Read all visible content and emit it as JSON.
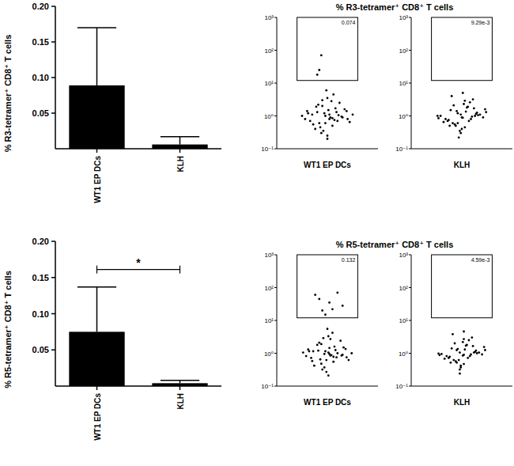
{
  "chart_data": [
    {
      "type": "bar",
      "y_label": "% R3-tetramer⁺ CD8⁺ T cells",
      "categories": [
        "WT1 EP DCs",
        "KLH"
      ],
      "values": [
        0.089,
        0.006
      ],
      "errors": [
        0.081,
        0.011
      ],
      "color": "#000000",
      "ylim": [
        0,
        0.2
      ],
      "yticks": [
        0.05,
        {
          "value": 0.1,
          "label": "0.10"
        },
        0.15,
        {
          "value": 0.2,
          "label": "0.20"
        }
      ]
    },
    {
      "type": "scatter",
      "title": "% R3-tetramer⁺ CD8⁺ T cells",
      "x_label": "WT1 EP DCs",
      "log": "y",
      "tick_labels": "y",
      "color": "#000000",
      "xlim": [
        0,
        100
      ],
      "ylim": [
        0.1,
        1000
      ],
      "yticks": [
        {
          "value": 0.1,
          "label": "10⁻¹"
        },
        {
          "value": 1,
          "label": "10⁰"
        },
        {
          "value": 10,
          "label": "10¹"
        },
        {
          "value": 100,
          "label": "10²"
        },
        {
          "value": 1000,
          "label": "10³"
        }
      ],
      "gate": {
        "x": [
          20,
          80
        ],
        "y": [
          12,
          1000
        ],
        "label": "0.074"
      },
      "x": [
        48,
        52,
        40,
        60,
        35,
        65,
        45,
        55,
        30,
        70,
        50,
        42,
        58,
        38,
        62,
        47,
        53,
        25,
        75,
        44,
        56,
        33,
        67,
        50,
        41,
        59,
        36,
        64,
        49,
        51,
        28,
        72,
        46,
        54,
        39,
        61,
        43,
        57,
        50,
        31,
        69,
        45,
        55,
        52,
        48,
        42,
        44,
        40
      ],
      "y": [
        1.0,
        0.8,
        1.3,
        0.7,
        1.1,
        0.9,
        2.0,
        0.5,
        1.4,
        0.8,
        3.5,
        0.6,
        1.7,
        0.4,
        2.5,
        1.2,
        0.9,
        1.0,
        1.1,
        0.3,
        4.5,
        0.7,
        1.6,
        0.25,
        2.2,
        1.3,
        0.55,
        0.95,
        6.0,
        1.5,
        0.8,
        0.65,
        0.35,
        2.8,
        1.9,
        1.05,
        0.45,
        0.75,
        0.2,
        1.2,
        1.4,
        3.0,
        0.85,
        1.1,
        0.6,
        25,
        70,
        18
      ]
    },
    {
      "type": "scatter",
      "x_label": "KLH",
      "log": "y",
      "tick_labels": "y",
      "color": "#000000",
      "xlim": [
        0,
        100
      ],
      "ylim": [
        0.1,
        1000
      ],
      "yticks": [
        {
          "value": 0.1,
          "label": "10⁻¹"
        },
        {
          "value": 1,
          "label": "10⁰"
        },
        {
          "value": 10,
          "label": "10¹"
        },
        {
          "value": 100,
          "label": "10²"
        },
        {
          "value": 1000,
          "label": "10³"
        }
      ],
      "gate": {
        "x": [
          20,
          80
        ],
        "y": [
          12,
          1000
        ],
        "label": "9.29e-3"
      },
      "x": [
        50,
        46,
        57,
        39,
        63,
        44,
        52,
        34,
        68,
        48,
        55,
        41,
        61,
        29,
        71,
        53,
        45,
        58,
        37,
        65,
        49,
        51,
        27,
        73,
        43,
        56,
        32,
        66,
        47,
        54,
        40,
        60,
        36,
        64,
        50,
        42,
        59,
        26,
        74,
        46,
        53,
        38,
        62,
        49,
        51
      ],
      "y": [
        0.9,
        1.2,
        0.7,
        1.5,
        1.0,
        0.5,
        2.3,
        0.8,
        1.1,
        0.35,
        1.8,
        0.6,
        3.2,
        1.0,
        0.9,
        0.45,
        1.4,
        2.6,
        0.75,
        1.25,
        0.3,
        5.0,
        0.85,
        1.6,
        0.55,
        1.9,
        0.65,
        1.05,
        0.22,
        1.35,
        4.0,
        0.95,
        0.7,
        1.15,
        0.4,
        2.1,
        0.8,
        1.0,
        1.3,
        0.6,
        2.9,
        0.5,
        1.7,
        1.1,
        0.88
      ]
    },
    {
      "type": "bar",
      "y_label": "% R5-tetramer⁺ CD8⁺ T cells",
      "categories": [
        "WT1 EP DCs",
        "KLH"
      ],
      "values": [
        0.075,
        0.004
      ],
      "errors": [
        0.062,
        0.004
      ],
      "color": "#000000",
      "ylim": [
        0,
        0.2
      ],
      "annotation": "*",
      "yticks": [
        0.05,
        {
          "value": 0.1,
          "label": "0.10"
        },
        0.15,
        {
          "value": 0.2,
          "label": "0.20"
        }
      ]
    },
    {
      "type": "scatter",
      "title": "% R5-tetramer⁺ CD8⁺ T cells",
      "x_label": "WT1 EP DCs",
      "log": "y",
      "tick_labels": "y",
      "color": "#000000",
      "xlim": [
        0,
        100
      ],
      "ylim": [
        0.1,
        1000
      ],
      "yticks": [
        {
          "value": 0.1,
          "label": "10⁻¹"
        },
        {
          "value": 1,
          "label": "10⁰"
        },
        {
          "value": 10,
          "label": "10¹"
        },
        {
          "value": 100,
          "label": "10²"
        },
        {
          "value": 1000,
          "label": "10³"
        }
      ],
      "gate": {
        "x": [
          20,
          80
        ],
        "y": [
          12,
          1000
        ],
        "label": "0.132"
      },
      "x": [
        47,
        53,
        41,
        59,
        36,
        64,
        44,
        56,
        31,
        69,
        51,
        43,
        57,
        37,
        63,
        48,
        52,
        26,
        74,
        45,
        55,
        34,
        66,
        49,
        42,
        58,
        35,
        65,
        50,
        52,
        29,
        71,
        47,
        53,
        40,
        60,
        44,
        56,
        51,
        32,
        68,
        46,
        54,
        51,
        49,
        38,
        45,
        52,
        60,
        48,
        65,
        42,
        55
      ],
      "y": [
        0.95,
        0.85,
        1.2,
        0.75,
        1.15,
        0.85,
        1.9,
        0.55,
        1.3,
        0.75,
        3.3,
        0.65,
        1.6,
        0.42,
        2.4,
        1.15,
        0.95,
        1.05,
        1.0,
        0.32,
        4.2,
        0.72,
        1.5,
        0.27,
        2.1,
        1.25,
        0.58,
        0.9,
        5.5,
        1.45,
        0.82,
        0.62,
        0.37,
        2.7,
        1.8,
        1.0,
        0.48,
        0.78,
        0.21,
        1.15,
        1.35,
        2.9,
        0.88,
        1.05,
        0.62,
        60,
        20,
        35,
        70,
        15,
        28,
        45,
        22
      ]
    },
    {
      "type": "scatter",
      "x_label": "KLH",
      "log": "y",
      "tick_labels": "y",
      "color": "#000000",
      "xlim": [
        0,
        100
      ],
      "ylim": [
        0.1,
        1000
      ],
      "yticks": [
        {
          "value": 0.1,
          "label": "10⁻¹"
        },
        {
          "value": 1,
          "label": "10⁰"
        },
        {
          "value": 10,
          "label": "10¹"
        },
        {
          "value": 100,
          "label": "10²"
        },
        {
          "value": 1000,
          "label": "10³"
        }
      ],
      "gate": {
        "x": [
          20,
          80
        ],
        "y": [
          12,
          1000
        ],
        "label": "4.59e-3"
      },
      "x": [
        51,
        45,
        56,
        40,
        62,
        45,
        51,
        35,
        67,
        49,
        54,
        42,
        60,
        30,
        70,
        52,
        46,
        57,
        38,
        64,
        48,
        52,
        28,
        72,
        44,
        55,
        33,
        65,
        48,
        53,
        41,
        59,
        37,
        63,
        49,
        43,
        58,
        27,
        73,
        47,
        52,
        39,
        61,
        48,
        52
      ],
      "y": [
        0.85,
        1.25,
        0.72,
        1.4,
        1.05,
        0.52,
        2.2,
        0.82,
        1.05,
        0.37,
        1.7,
        0.62,
        3.0,
        0.95,
        0.92,
        0.47,
        1.35,
        2.5,
        0.78,
        1.2,
        0.32,
        4.6,
        0.88,
        1.55,
        0.57,
        1.8,
        0.68,
        1.0,
        0.24,
        1.3,
        3.8,
        0.92,
        0.72,
        1.1,
        0.42,
        2.0,
        0.82,
        0.98,
        1.25,
        0.62,
        2.7,
        0.52,
        1.65,
        1.05,
        0.9
      ]
    }
  ]
}
